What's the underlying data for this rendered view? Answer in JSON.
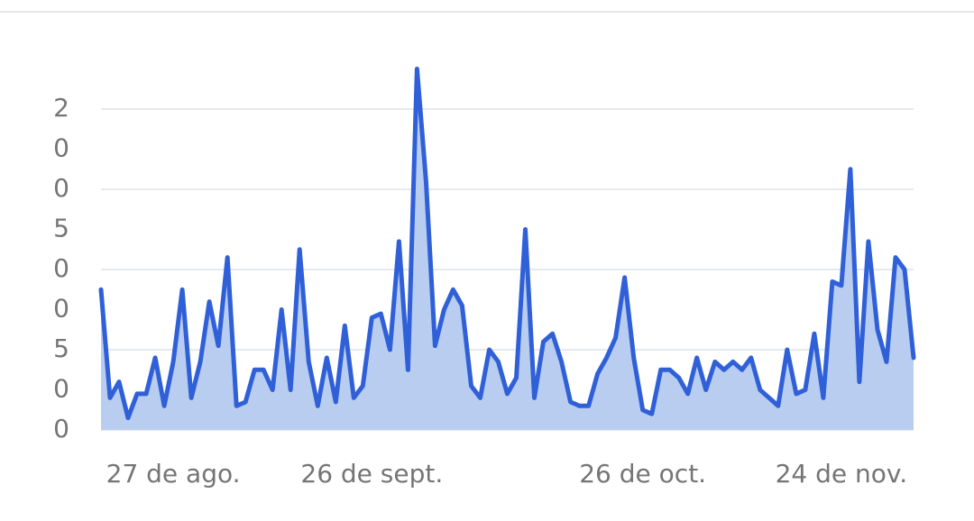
{
  "chart_data": {
    "type": "area",
    "categories": [
      null,
      null,
      null,
      null,
      null,
      null,
      null,
      null,
      "27 de ago.",
      null,
      null,
      null,
      null,
      null,
      null,
      null,
      null,
      null,
      null,
      null,
      null,
      null,
      null,
      null,
      null,
      null,
      null,
      null,
      null,
      null,
      "26 de sept.",
      null,
      null,
      null,
      null,
      null,
      null,
      null,
      null,
      null,
      null,
      null,
      null,
      null,
      null,
      null,
      null,
      null,
      null,
      null,
      null,
      null,
      null,
      null,
      null,
      null,
      null,
      null,
      null,
      null,
      "26 de oct.",
      null,
      null,
      null,
      null,
      null,
      null,
      null,
      null,
      null,
      null,
      null,
      null,
      null,
      null,
      null,
      null,
      null,
      null,
      null,
      null,
      null,
      "24 de nov.",
      null,
      null,
      null,
      null,
      null,
      null,
      null,
      null
    ],
    "values": [
      3.5,
      0.8,
      1.2,
      0.3,
      0.9,
      0.9,
      1.8,
      0.6,
      1.7,
      3.5,
      0.8,
      1.7,
      3.2,
      2.1,
      4.3,
      0.6,
      0.7,
      1.5,
      1.5,
      1.0,
      3.0,
      1.0,
      4.5,
      1.7,
      0.6,
      1.8,
      0.7,
      2.6,
      0.8,
      1.1,
      2.8,
      2.9,
      2.0,
      4.7,
      1.5,
      9.0,
      6.2,
      2.1,
      3.0,
      3.5,
      3.1,
      1.1,
      0.8,
      2.0,
      1.7,
      0.9,
      1.3,
      5.0,
      0.8,
      2.2,
      2.4,
      1.7,
      0.7,
      0.6,
      0.6,
      1.4,
      1.8,
      2.3,
      3.8,
      1.8,
      0.5,
      0.4,
      1.5,
      1.5,
      1.3,
      0.9,
      1.8,
      1.0,
      1.7,
      1.5,
      1.7,
      1.5,
      1.8,
      1.0,
      0.8,
      0.6,
      2.0,
      0.9,
      1.0,
      2.4,
      0.8,
      3.7,
      3.6,
      6.5,
      1.2,
      4.7,
      2.5,
      1.7,
      4.3,
      4.0,
      1.8
    ],
    "color": "#3060d8",
    "fill": "#b9cdf1",
    "ylim": [
      0,
      8
    ],
    "yticks": [
      {
        "value": 0,
        "label": "0"
      },
      {
        "value": 1,
        "label": "0"
      },
      {
        "value": 2,
        "label": "5"
      },
      {
        "value": 3,
        "label": "0"
      },
      {
        "value": 4,
        "label": "0"
      },
      {
        "value": 5,
        "label": "5"
      },
      {
        "value": 6,
        "label": "0"
      },
      {
        "value": 7,
        "label": "0"
      },
      {
        "value": 8,
        "label": "2"
      }
    ],
    "grid": true,
    "grid_every": 2
  }
}
